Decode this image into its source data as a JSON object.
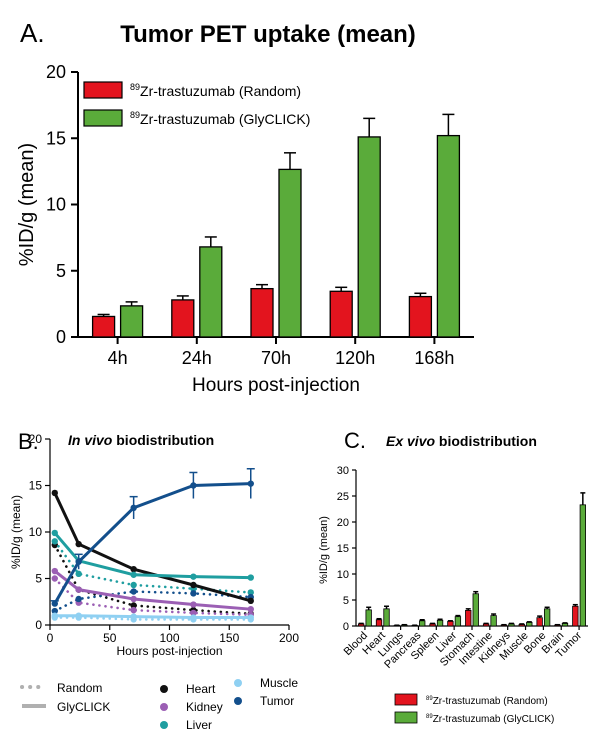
{
  "chart_data": [
    {
      "panel": "A.",
      "type": "bar",
      "title": "Tumor PET uptake (mean)",
      "xlabel": "Hours post-injection",
      "ylabel": "%ID/g (mean)",
      "ylim": [
        0,
        20
      ],
      "yticks": [
        0,
        5,
        10,
        15,
        20
      ],
      "categories": [
        "4h",
        "24h",
        "70h",
        "120h",
        "168h"
      ],
      "legend_position": "top-left",
      "series": [
        {
          "name_sup": "89",
          "name": "Zr-trastuzumab (Random)",
          "color": "#e3141e",
          "values": [
            1.55,
            2.8,
            3.65,
            3.45,
            3.05
          ],
          "errors": [
            0.15,
            0.3,
            0.3,
            0.3,
            0.25
          ]
        },
        {
          "name_sup": "89",
          "name": "Zr-trastuzumab (GlyCLICK)",
          "color": "#5aab3a",
          "values": [
            2.35,
            6.8,
            12.65,
            15.1,
            15.2
          ],
          "errors": [
            0.3,
            0.75,
            1.25,
            1.4,
            1.6
          ]
        }
      ]
    },
    {
      "panel": "B.",
      "type": "line",
      "title_italic": "In vivo",
      "title_rest": " biodistribution",
      "xlabel": "Hours post-injection",
      "ylabel": "%ID/g (mean)",
      "xlim": [
        0,
        200
      ],
      "ylim": [
        0,
        20
      ],
      "xticks": [
        0,
        50,
        100,
        150,
        200
      ],
      "yticks": [
        0,
        5,
        10,
        15,
        20
      ],
      "x": [
        4,
        24,
        70,
        120,
        168
      ],
      "line_styles": [
        {
          "label": "Random",
          "style": "dotted"
        },
        {
          "label": "GlyCLICK",
          "style": "solid"
        }
      ],
      "organs": [
        {
          "label": "Heart",
          "color": "#111111"
        },
        {
          "label": "Kidney",
          "color": "#9b5fb4"
        },
        {
          "label": "Liver",
          "color": "#1f9ea0"
        },
        {
          "label": "Muscle",
          "color": "#8fd0f2"
        },
        {
          "label": "Tumor",
          "color": "#134f8c"
        }
      ],
      "series": [
        {
          "organ": "Heart",
          "style": "dotted",
          "color": "#111111",
          "values": [
            8.6,
            3.8,
            2.1,
            1.6,
            1.2
          ]
        },
        {
          "organ": "Kidney",
          "style": "dotted",
          "color": "#9b5fb4",
          "values": [
            5.0,
            2.4,
            1.6,
            1.3,
            1.1
          ]
        },
        {
          "organ": "Liver",
          "style": "dotted",
          "color": "#1f9ea0",
          "values": [
            9.0,
            5.5,
            4.3,
            3.9,
            3.5
          ]
        },
        {
          "organ": "Muscle",
          "style": "dotted",
          "color": "#8fd0f2",
          "values": [
            0.8,
            0.8,
            0.6,
            0.6,
            0.6
          ]
        },
        {
          "organ": "Tumor",
          "style": "dotted",
          "color": "#134f8c",
          "values": [
            1.5,
            2.8,
            3.6,
            3.4,
            3.0
          ]
        },
        {
          "organ": "Heart",
          "style": "solid",
          "color": "#111111",
          "values": [
            14.2,
            8.7,
            6.0,
            4.3,
            2.6
          ]
        },
        {
          "organ": "Kidney",
          "style": "solid",
          "color": "#9b5fb4",
          "values": [
            5.8,
            3.8,
            2.8,
            2.2,
            1.7
          ]
        },
        {
          "organ": "Liver",
          "style": "solid",
          "color": "#1f9ea0",
          "values": [
            9.9,
            6.9,
            5.4,
            5.2,
            5.1
          ]
        },
        {
          "organ": "Muscle",
          "style": "solid",
          "color": "#8fd0f2",
          "values": [
            1.0,
            1.0,
            0.9,
            0.8,
            0.8
          ]
        },
        {
          "organ": "Tumor",
          "style": "solid",
          "color": "#134f8c",
          "values": [
            2.3,
            6.8,
            12.6,
            15.0,
            15.2
          ],
          "errors": [
            0.3,
            0.8,
            1.2,
            1.4,
            1.6
          ]
        }
      ]
    },
    {
      "panel": "C.",
      "type": "bar",
      "title_italic": "Ex vivo",
      "title_rest": " biodistribution",
      "ylabel": "%ID/g (mean)",
      "ylim": [
        0,
        30
      ],
      "yticks": [
        0,
        5,
        10,
        15,
        20,
        25,
        30
      ],
      "categories": [
        "Blood",
        "Heart",
        "Lungs",
        "Pancreas",
        "Spleen",
        "Liver",
        "Stomach",
        "Intestine",
        "Kidneys",
        "Muscle",
        "Bone",
        "Brain",
        "Tumor"
      ],
      "legend_position": "bottom",
      "series": [
        {
          "name_sup": "89",
          "name": "Zr-trastuzumab (Random)",
          "color": "#e3141e",
          "values": [
            0.4,
            1.2,
            0.1,
            0.1,
            0.4,
            0.9,
            3.0,
            0.4,
            0.2,
            0.3,
            1.6,
            0.2,
            3.8
          ],
          "errors": [
            0.1,
            0.2,
            0.05,
            0.05,
            0.1,
            0.1,
            0.3,
            0.1,
            0.05,
            0.1,
            0.3,
            0.05,
            0.3
          ]
        },
        {
          "name_sup": "89",
          "name": "Zr-trastuzumab (GlyCLICK)",
          "color": "#5aab3a",
          "values": [
            3.1,
            3.3,
            0.2,
            1.0,
            1.1,
            1.8,
            6.2,
            2.0,
            0.4,
            0.7,
            3.3,
            0.5,
            23.3
          ],
          "errors": [
            0.5,
            0.5,
            0.05,
            0.2,
            0.2,
            0.2,
            0.4,
            0.3,
            0.1,
            0.1,
            0.3,
            0.1,
            2.3
          ]
        }
      ]
    }
  ]
}
